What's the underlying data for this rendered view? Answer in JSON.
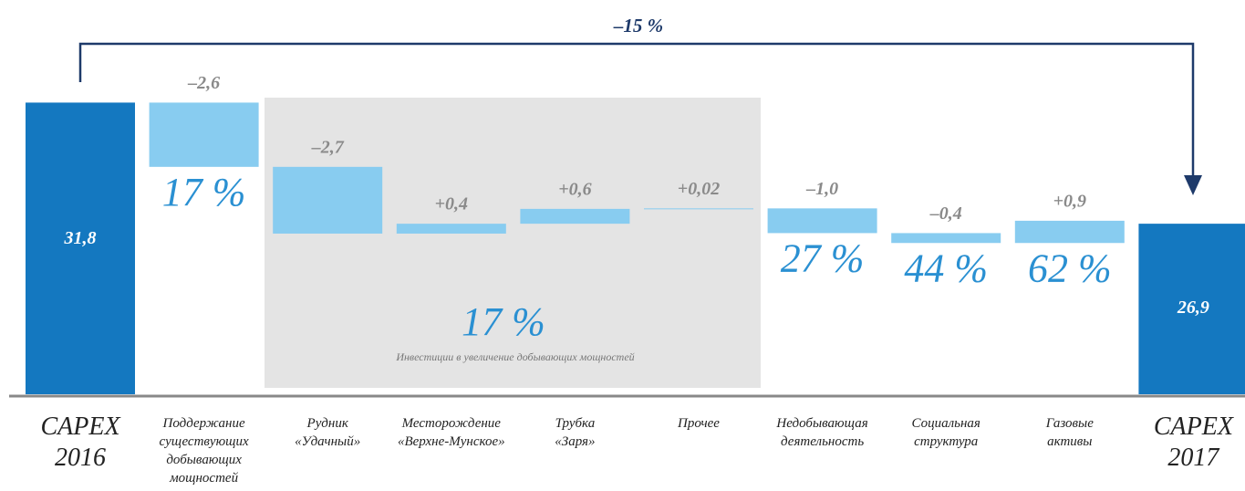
{
  "chart_data": {
    "type": "waterfall",
    "title": "–15 %",
    "categories": [
      [
        "CAPEX",
        "2016"
      ],
      [
        "Поддержание",
        "существующих",
        "добывающих",
        "мощностей"
      ],
      [
        "Рудник",
        "«Удачный»"
      ],
      [
        "Месторождение",
        "«Верхне-Мунское»"
      ],
      [
        "Трубка",
        "«Заря»"
      ],
      [
        "Прочее"
      ],
      [
        "Недобывающая",
        "деятельность"
      ],
      [
        "Социальная",
        "структура"
      ],
      [
        "Газовые",
        "активы"
      ],
      [
        "CAPEX",
        "2017"
      ]
    ],
    "values": [
      31.8,
      -2.6,
      -2.7,
      0.4,
      0.6,
      0.02,
      -1.0,
      -0.4,
      0.9,
      26.9
    ],
    "value_labels": [
      "31,8",
      "–2,6",
      "–2,7",
      "+0,4",
      "+0,6",
      "+0,02",
      "–1,0",
      "–0,4",
      "+0,9",
      "26,9"
    ],
    "totals": [
      true,
      false,
      false,
      false,
      false,
      false,
      false,
      false,
      false,
      true
    ],
    "shares": [
      null,
      "17 %",
      null,
      null,
      null,
      null,
      "27 %",
      "44 %",
      "62 %",
      null
    ],
    "group": {
      "label": "17 %",
      "note": "Инвестиции в увеличение добывающих мощностей"
    },
    "total_color": "#1478c0",
    "delta_color": "#88ccf0",
    "ylim": [
      20,
      32
    ]
  }
}
